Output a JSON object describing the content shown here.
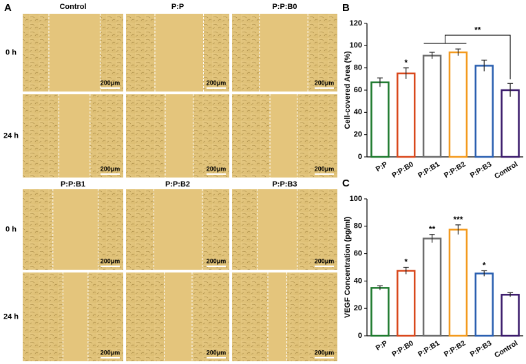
{
  "panel_a": {
    "label": "A",
    "groups": [
      {
        "columns": [
          "Control",
          "P:P",
          "P:P:B0"
        ]
      },
      {
        "columns": [
          "P:P:B1",
          "P:P:B2",
          "P:P:B3"
        ]
      }
    ],
    "rows": [
      "0 h",
      "24 h"
    ],
    "scale_bar": "200μm"
  },
  "chart_data": [
    {
      "type": "bar",
      "label": "B",
      "ylabel": "Cell-covered Area (%)",
      "categories": [
        "P:P",
        "P:P:B0",
        "P:P:B1",
        "P:P:B2",
        "P:P:B3",
        "Control"
      ],
      "values": [
        67,
        75,
        91,
        94,
        82,
        60
      ],
      "errors": [
        4,
        5,
        3,
        3,
        5,
        6
      ],
      "colors": [
        "#1e7a2e",
        "#d9481c",
        "#6d6d6d",
        "#f39a1e",
        "#2a5fb0",
        "#3a1a6b"
      ],
      "ylim": [
        0,
        120
      ],
      "yticks": [
        0,
        20,
        40,
        60,
        80,
        100,
        120
      ],
      "annotations": [
        {
          "text": "*",
          "indices": [
            1
          ]
        },
        {
          "text": "**",
          "indices": [
            2,
            3,
            5
          ]
        }
      ]
    },
    {
      "type": "bar",
      "label": "C",
      "ylabel": "VEGF Concentration (pg/ml)",
      "categories": [
        "P:P",
        "P:P:B0",
        "P:P:B1",
        "P:P:B2",
        "P:P:B3",
        "Control"
      ],
      "values": [
        35,
        47.5,
        71,
        77.5,
        45.5,
        30
      ],
      "errors": [
        1.5,
        2.5,
        3,
        3.5,
        2,
        1.5
      ],
      "colors": [
        "#1e7a2e",
        "#d9481c",
        "#6d6d6d",
        "#f39a1e",
        "#2a5fb0",
        "#3a1a6b"
      ],
      "ylim": [
        0,
        100
      ],
      "yticks": [
        0,
        20,
        40,
        60,
        80,
        100
      ],
      "annotations": [
        {
          "text": "*",
          "indices": [
            1
          ]
        },
        {
          "text": "**",
          "indices": [
            2
          ]
        },
        {
          "text": "***",
          "indices": [
            3
          ]
        },
        {
          "text": "*",
          "indices": [
            4
          ]
        }
      ]
    }
  ]
}
